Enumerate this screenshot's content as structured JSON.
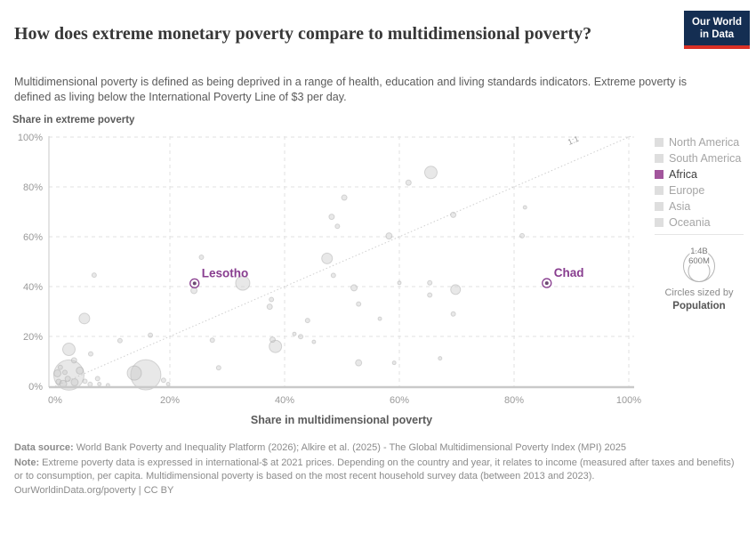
{
  "header": {
    "title": "How does extreme monetary poverty compare to multidimensional poverty?",
    "subtitle": "Multidimensional poverty is defined as being deprived in a range of health, education and living standards indicators. Extreme poverty is defined as living below the International Poverty Line of $3 per day.",
    "logo_line1": "Our World",
    "logo_line2": "in Data"
  },
  "colors": {
    "accent_purple": "#a2559c",
    "highlight_label": "#883d8f",
    "point_fill": "#c7c7c7",
    "point_stroke": "#9f9f9f",
    "grid": "#e2e2e2",
    "axis_line": "#c9c9c9",
    "tick_text": "#999999",
    "axis_title": "#5b5b5b",
    "diagonal": "#cfcfcf",
    "logo_bg": "#142e52",
    "logo_red": "#d93025"
  },
  "chart_data": {
    "type": "scatter",
    "title": "Extreme monetary poverty vs multidimensional poverty, by country",
    "xlabel": "Share in multidimensional poverty",
    "ylabel": "Share in extreme poverty",
    "xlim": [
      0,
      100
    ],
    "ylim": [
      0,
      100
    ],
    "grid": true,
    "x_tick_values": [
      0,
      20,
      40,
      60,
      80,
      100
    ],
    "x_tick_labels": [
      "0%",
      "20%",
      "40%",
      "60%",
      "80%",
      "100%"
    ],
    "y_tick_values": [
      0,
      20,
      40,
      60,
      80,
      100
    ],
    "y_tick_labels": [
      "0%",
      "20%",
      "40%",
      "60%",
      "80%",
      "100%"
    ],
    "diagonal_label": "1:1",
    "points": [
      {
        "x": 2.4,
        "y": 4.5,
        "r": 17
      },
      {
        "x": 15.8,
        "y": 4.6,
        "r": 17
      },
      {
        "x": 13.8,
        "y": 5.3,
        "r": 8
      },
      {
        "x": 2.4,
        "y": 14.8,
        "r": 7
      },
      {
        "x": 5.1,
        "y": 27.2,
        "r": 6
      },
      {
        "x": 3.3,
        "y": 10.4,
        "r": 3
      },
      {
        "x": 4.3,
        "y": 6.3,
        "r": 4
      },
      {
        "x": 0.4,
        "y": 5.2,
        "r": 4
      },
      {
        "x": 0.6,
        "y": 1.8,
        "r": 3
      },
      {
        "x": 1.4,
        "y": 1.0,
        "r": 4
      },
      {
        "x": 2.2,
        "y": 3.0,
        "r": 3
      },
      {
        "x": 3.4,
        "y": 1.6,
        "r": 4
      },
      {
        "x": 0.9,
        "y": 7.6,
        "r": 2.5
      },
      {
        "x": 1.7,
        "y": 5.6,
        "r": 2.5
      },
      {
        "x": 5.2,
        "y": 2.0,
        "r": 2.5
      },
      {
        "x": 6.1,
        "y": 0.8,
        "r": 2.5
      },
      {
        "x": 7.4,
        "y": 3.1,
        "r": 2.5
      },
      {
        "x": 7.7,
        "y": 0.9,
        "r": 2
      },
      {
        "x": 9.2,
        "y": 0.4,
        "r": 2
      },
      {
        "x": 6.2,
        "y": 13.0,
        "r": 2.5
      },
      {
        "x": 11.3,
        "y": 18.3,
        "r": 2.5
      },
      {
        "x": 16.6,
        "y": 20.5,
        "r": 2.5
      },
      {
        "x": 18.9,
        "y": 2.4,
        "r": 2.5
      },
      {
        "x": 19.7,
        "y": 0.9,
        "r": 2
      },
      {
        "x": 6.8,
        "y": 44.6,
        "r": 2.5
      },
      {
        "x": 25.5,
        "y": 51.8,
        "r": 2.5
      },
      {
        "x": 24.2,
        "y": 38.4,
        "r": 3.5
      },
      {
        "x": 32.7,
        "y": 41.4,
        "r": 8
      },
      {
        "x": 27.4,
        "y": 18.5,
        "r": 2.5
      },
      {
        "x": 28.5,
        "y": 7.4,
        "r": 2.5
      },
      {
        "x": 37.7,
        "y": 34.8,
        "r": 2.5
      },
      {
        "x": 37.4,
        "y": 31.9,
        "r": 3
      },
      {
        "x": 38.4,
        "y": 16.0,
        "r": 7
      },
      {
        "x": 37.9,
        "y": 18.7,
        "r": 3
      },
      {
        "x": 41.7,
        "y": 21.0,
        "r": 2
      },
      {
        "x": 42.8,
        "y": 19.9,
        "r": 2.5
      },
      {
        "x": 45.1,
        "y": 17.8,
        "r": 2
      },
      {
        "x": 44.0,
        "y": 26.4,
        "r": 2.5
      },
      {
        "x": 47.4,
        "y": 51.3,
        "r": 6
      },
      {
        "x": 48.5,
        "y": 44.5,
        "r": 2.5
      },
      {
        "x": 48.2,
        "y": 68.0,
        "r": 3
      },
      {
        "x": 49.2,
        "y": 64.2,
        "r": 2.5
      },
      {
        "x": 50.4,
        "y": 75.7,
        "r": 3
      },
      {
        "x": 52.9,
        "y": 9.4,
        "r": 3.5
      },
      {
        "x": 59.1,
        "y": 9.4,
        "r": 2
      },
      {
        "x": 67.1,
        "y": 11.2,
        "r": 2
      },
      {
        "x": 52.1,
        "y": 39.5,
        "r": 3.5
      },
      {
        "x": 52.9,
        "y": 33.0,
        "r": 2.5
      },
      {
        "x": 56.6,
        "y": 27.1,
        "r": 2
      },
      {
        "x": 58.2,
        "y": 60.3,
        "r": 3.5
      },
      {
        "x": 60.0,
        "y": 41.5,
        "r": 2
      },
      {
        "x": 61.6,
        "y": 81.7,
        "r": 3
      },
      {
        "x": 65.5,
        "y": 85.8,
        "r": 7
      },
      {
        "x": 65.3,
        "y": 41.5,
        "r": 2.5
      },
      {
        "x": 65.3,
        "y": 36.6,
        "r": 2.5
      },
      {
        "x": 69.8,
        "y": 38.8,
        "r": 5.5
      },
      {
        "x": 69.4,
        "y": 68.8,
        "r": 3
      },
      {
        "x": 69.4,
        "y": 29.0,
        "r": 2.5
      },
      {
        "x": 81.4,
        "y": 60.4,
        "r": 2.5
      },
      {
        "x": 81.9,
        "y": 71.8,
        "r": 2
      }
    ],
    "labeled_points": [
      {
        "name": "Lesotho",
        "x": 24.3,
        "y": 41.3
      },
      {
        "name": "Chad",
        "x": 85.7,
        "y": 41.4
      }
    ],
    "legend_position": "right"
  },
  "legend": {
    "items": [
      {
        "label": "North America",
        "color": "#dedede",
        "active": false
      },
      {
        "label": "South America",
        "color": "#dedede",
        "active": false
      },
      {
        "label": "Africa",
        "color": "#a2559c",
        "active": true
      },
      {
        "label": "Europe",
        "color": "#dedede",
        "active": false
      },
      {
        "label": "Asia",
        "color": "#dedede",
        "active": false
      },
      {
        "label": "Oceania",
        "color": "#dedede",
        "active": false
      }
    ],
    "size_legend": {
      "outer_label": "1.4B",
      "inner_label": "600M",
      "caption": "Circles sized by",
      "caption_bold": "Population"
    }
  },
  "footer": {
    "datasource_label": "Data source:",
    "datasource_text": " World Bank Poverty and Inequality Platform (2026); Alkire et al. (2025) - The Global Multidimensional Poverty Index (MPI) 2025",
    "note_label": "Note:",
    "note_text": " Extreme poverty data is expressed in international-$ at 2021 prices. Depending on the country and year, it relates to income (measured after taxes and benefits) or to consumption, per capita. Multidimensional poverty is based on the most recent household survey data (between 2013 and 2023).",
    "link": "OurWorldinData.org/poverty | CC BY"
  }
}
